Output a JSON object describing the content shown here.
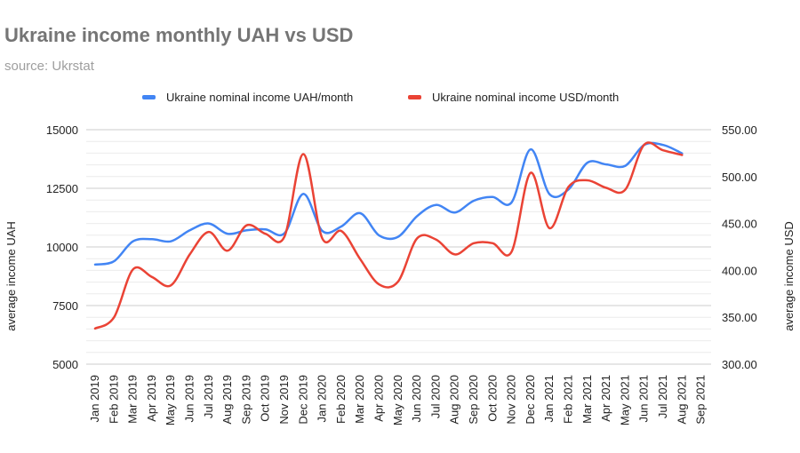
{
  "header": {
    "title": "Ukraine income monthly UAH vs USD",
    "subtitle": "source: Ukrstat"
  },
  "legend": [
    {
      "label": "Ukraine nominal income UAH/month",
      "color": "#4285f4"
    },
    {
      "label": "Ukraine nominal income USD/month",
      "color": "#ea4335"
    }
  ],
  "axes": {
    "left_title": "average income UAH",
    "right_title": "average income USD",
    "left_ticks": [
      "15000",
      "12500",
      "10000",
      "7500",
      "5000"
    ],
    "right_ticks": [
      "550.00",
      "500.00",
      "450.00",
      "400.00",
      "350.00",
      "300.00"
    ]
  },
  "chart_data": {
    "type": "line",
    "title": "Ukraine income monthly UAH vs USD",
    "subtitle": "source: Ukrstat",
    "xlabel": "",
    "ylabel": "average income UAH",
    "ylabel_right": "average income USD",
    "ylim": [
      5000,
      15000
    ],
    "ylim_right": [
      300,
      550
    ],
    "yticks": [
      5000,
      7500,
      10000,
      12500,
      15000
    ],
    "yticks_right": [
      300,
      350,
      400,
      450,
      500,
      550
    ],
    "grid": true,
    "minor_grid": true,
    "legend_position": "top",
    "categories": [
      "Jan 2019",
      "Feb 2019",
      "Mar 2019",
      "Apr 2019",
      "May 2019",
      "Jun 2019",
      "Jul 2019",
      "Aug 2019",
      "Sep 2019",
      "Oct 2019",
      "Nov 2019",
      "Dec 2019",
      "Jan 2020",
      "Feb 2020",
      "Mar 2020",
      "Apr 2020",
      "May 2020",
      "Jun 2020",
      "Jul 2020",
      "Aug 2020",
      "Sep 2020",
      "Oct 2020",
      "Nov 2020",
      "Dec 2020",
      "Jan 2021",
      "Feb 2021",
      "Mar 2021",
      "Apr 2021",
      "May 2021",
      "Jun 2021",
      "Jul 2021",
      "Aug 2021",
      "Sep 2021"
    ],
    "series": [
      {
        "name": "Ukraine nominal income UAH/month",
        "axis": "left",
        "color": "#4285f4",
        "values": [
          9250,
          9390,
          10240,
          10330,
          10240,
          10710,
          11000,
          10560,
          10710,
          10750,
          10580,
          12260,
          10680,
          10870,
          11440,
          10490,
          10430,
          11310,
          11790,
          11470,
          11970,
          12130,
          11900,
          14160,
          12250,
          12450,
          13590,
          13520,
          13460,
          14350,
          14350,
          13990,
          null
        ]
      },
      {
        "name": "Ukraine nominal income USD/month",
        "axis": "right",
        "color": "#ea4335",
        "values": [
          338,
          350,
          401,
          393,
          384,
          417,
          441,
          421,
          448,
          439,
          436,
          524,
          434,
          442,
          412,
          385,
          388,
          434,
          433,
          417,
          429,
          429,
          420,
          504,
          445,
          489,
          496,
          488,
          486,
          534,
          528,
          523,
          null
        ]
      }
    ]
  }
}
